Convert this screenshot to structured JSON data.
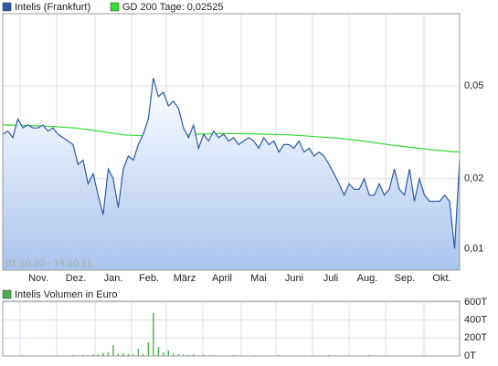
{
  "chart_data": [
    {
      "type": "line",
      "log_scale": true,
      "grid": true,
      "range_label": "01.10.10 - 14.10.11",
      "xtick_labels": [
        "Nov.",
        "Dez.",
        "Jan.",
        "Feb.",
        "März",
        "April",
        "Mai",
        "Juni",
        "Juli",
        "Aug.",
        "Sep.",
        "Okt."
      ],
      "ylim": [
        0.0081,
        0.102
      ],
      "yticks": [
        {
          "value": 0.01,
          "label": "0,01"
        },
        {
          "value": 0.02,
          "label": "0,02"
        },
        {
          "value": 0.05,
          "label": "0,05"
        }
      ],
      "series": [
        {
          "name": "Intelis (Frankfurt)",
          "color": "#2a5ca8",
          "values": [
            0.031,
            0.032,
            0.03,
            0.036,
            0.033,
            0.034,
            0.033,
            0.033,
            0.034,
            0.032,
            0.033,
            0.031,
            0.03,
            0.029,
            0.028,
            0.023,
            0.024,
            0.019,
            0.021,
            0.017,
            0.014,
            0.022,
            0.02,
            0.015,
            0.022,
            0.025,
            0.024,
            0.028,
            0.031,
            0.036,
            0.054,
            0.045,
            0.047,
            0.041,
            0.043,
            0.04,
            0.033,
            0.03,
            0.034,
            0.027,
            0.031,
            0.029,
            0.032,
            0.03,
            0.031,
            0.029,
            0.03,
            0.028,
            0.029,
            0.03,
            0.029,
            0.027,
            0.03,
            0.028,
            0.029,
            0.026,
            0.028,
            0.028,
            0.027,
            0.029,
            0.026,
            0.027,
            0.025,
            0.026,
            0.025,
            0.023,
            0.021,
            0.019,
            0.017,
            0.019,
            0.018,
            0.018,
            0.02,
            0.017,
            0.017,
            0.019,
            0.017,
            0.018,
            0.022,
            0.018,
            0.017,
            0.022,
            0.016,
            0.02,
            0.017,
            0.016,
            0.016,
            0.016,
            0.017,
            0.016,
            0.01,
            0.024
          ]
        },
        {
          "name": "GD 200 Tage: 0,02525",
          "color": "#33dd33",
          "values": [
            0.034,
            0.0338,
            0.0335,
            0.033,
            0.032,
            0.0308,
            0.0305,
            0.0306,
            0.031,
            0.0312,
            0.0312,
            0.031,
            0.0308,
            0.0303,
            0.0298,
            0.029,
            0.028,
            0.0272,
            0.0265,
            0.026
          ]
        }
      ]
    },
    {
      "type": "bar",
      "grid": true,
      "ylim": [
        0,
        600000
      ],
      "yticks": [
        {
          "value": 0,
          "label": "0T"
        },
        {
          "value": 200000,
          "label": "200T"
        },
        {
          "value": 400000,
          "label": "400T"
        },
        {
          "value": 600000,
          "label": "600T"
        }
      ],
      "series": [
        {
          "name": "Intelis Volumen in Euro",
          "color": "#4caf50",
          "values": [
            2000,
            5000,
            1000,
            3000,
            8000,
            2000,
            1000,
            4000,
            3000,
            1000,
            2000,
            6000,
            3000,
            2000,
            9000,
            5000,
            12000,
            8000,
            15000,
            20000,
            30000,
            40000,
            120000,
            25000,
            30000,
            20000,
            15000,
            80000,
            20000,
            150000,
            480000,
            100000,
            40000,
            60000,
            30000,
            20000,
            15000,
            10000,
            20000,
            8000,
            12000,
            6000,
            9000,
            5000,
            7000,
            4000,
            10000,
            6000,
            3000,
            5000,
            8000,
            4000,
            6000,
            3000,
            5000,
            12000,
            4000,
            3000,
            6000,
            2000,
            8000,
            3000,
            4000,
            2000,
            5000,
            10000,
            6000,
            4000,
            8000,
            3000,
            2000,
            5000,
            3000,
            9000,
            2000,
            4000,
            1000,
            3000,
            6000,
            2000,
            3000,
            1000,
            4000,
            2000,
            5000,
            1000,
            3000,
            2000,
            1000,
            2000,
            6000,
            8000
          ]
        }
      ]
    }
  ]
}
